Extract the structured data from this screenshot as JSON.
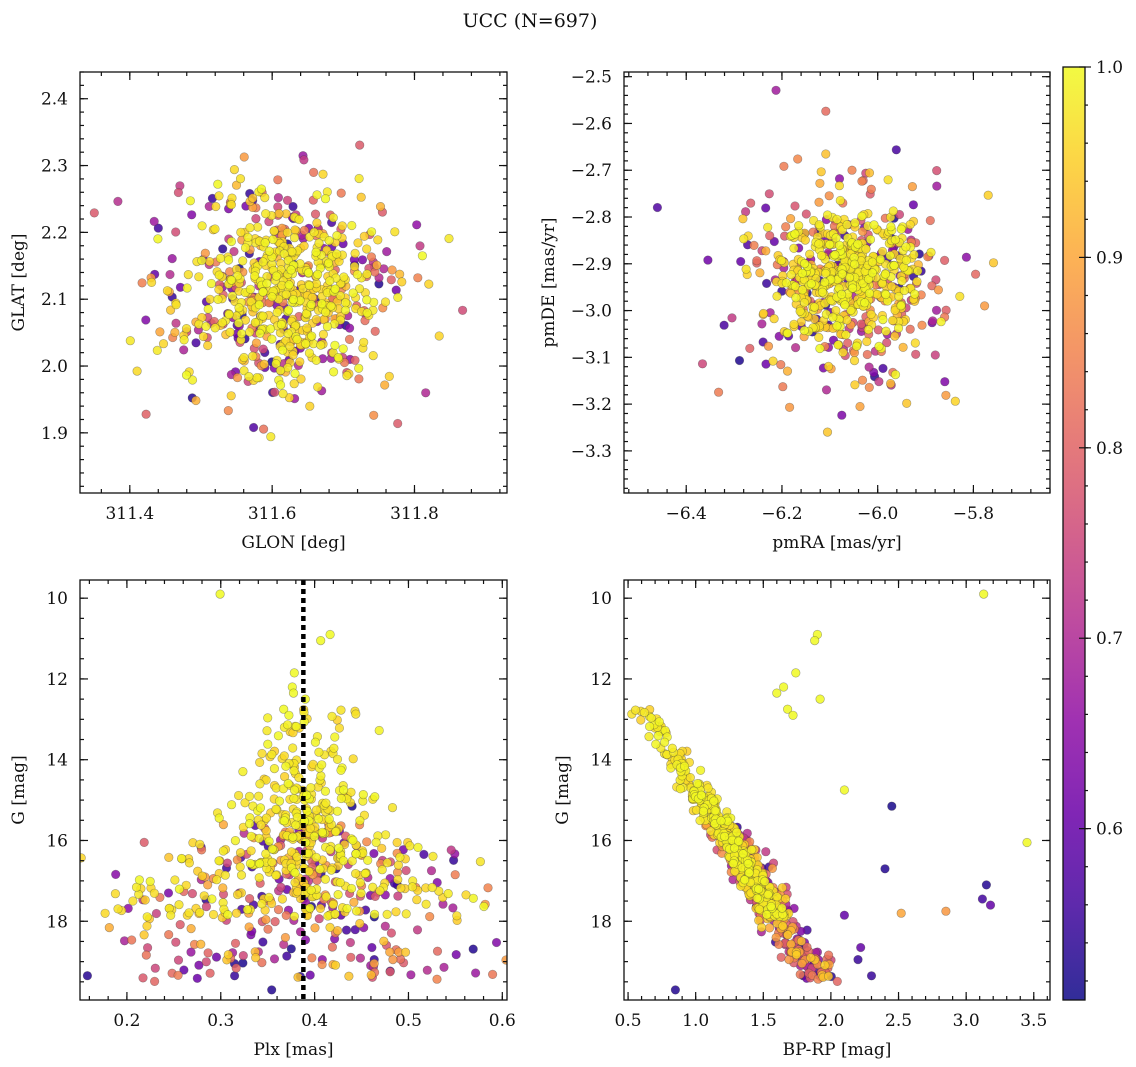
{
  "title": "UCC (N=697)",
  "panels": [
    {
      "id": "lonlat",
      "xlabel": "GLON [deg]",
      "ylabel": "GLAT [deg]",
      "xlim": [
        311.33,
        311.93
      ],
      "ylim": [
        1.81,
        2.44
      ],
      "xticks": [
        311.4,
        311.6,
        311.8
      ],
      "yticks": [
        1.9,
        2.0,
        2.1,
        2.2,
        2.3,
        2.4
      ],
      "xtick_labels": [
        "311.4",
        "311.6",
        "311.8"
      ],
      "ytick_labels": [
        "1.9",
        "2.0",
        "2.1",
        "2.2",
        "2.3",
        "2.4"
      ]
    },
    {
      "id": "pm",
      "xlabel": "pmRA [mas/yr]",
      "ylabel": "pmDE [mas/yr]",
      "xlim": [
        -6.53,
        -5.64
      ],
      "ylim": [
        -3.39,
        -2.49
      ],
      "xticks": [
        -6.4,
        -6.2,
        -6.0,
        -5.8
      ],
      "yticks": [
        -3.3,
        -3.2,
        -3.1,
        -3.0,
        -2.9,
        -2.8,
        -2.7,
        -2.6,
        -2.5
      ],
      "xtick_labels": [
        "−6.4",
        "−6.2",
        "−6.0",
        "−5.8"
      ],
      "ytick_labels": [
        "−3.3",
        "−3.2",
        "−3.1",
        "−3.0",
        "−2.9",
        "−2.8",
        "−2.7",
        "−2.6",
        "−2.5"
      ]
    },
    {
      "id": "plx",
      "xlabel": "Plx [mas]",
      "ylabel": "G [mag]",
      "xlim": [
        0.15,
        0.605
      ],
      "ylim": [
        19.95,
        9.55
      ],
      "xticks": [
        0.2,
        0.3,
        0.4,
        0.5,
        0.6
      ],
      "yticks": [
        10,
        12,
        14,
        16,
        18
      ],
      "xtick_labels": [
        "0.2",
        "0.3",
        "0.4",
        "0.5",
        "0.6"
      ],
      "ytick_labels": [
        "10",
        "12",
        "14",
        "16",
        "18"
      ],
      "vline_x": 0.388
    },
    {
      "id": "cmd",
      "xlabel": "BP-RP [mag]",
      "ylabel": "G [mag]",
      "xlim": [
        0.47,
        3.62
      ],
      "ylim": [
        19.95,
        9.55
      ],
      "xticks": [
        0.5,
        1.0,
        1.5,
        2.0,
        2.5,
        3.0,
        3.5
      ],
      "yticks": [
        10,
        12,
        14,
        16,
        18
      ],
      "xtick_labels": [
        "0.5",
        "1.0",
        "1.5",
        "2.0",
        "2.5",
        "3.0",
        "3.5"
      ],
      "ytick_labels": [
        "10",
        "12",
        "14",
        "16",
        "18"
      ]
    }
  ],
  "colorbar": {
    "vmin": 0.51,
    "vmax": 1.0,
    "colormap": "plasma",
    "ticks": [
      0.6,
      0.7,
      0.8,
      0.9,
      1.0
    ],
    "tick_labels": [
      "0.6",
      "0.7",
      "0.8",
      "0.9",
      "1.0"
    ]
  },
  "chart_data": [
    {
      "type": "scatter",
      "panel": "lonlat",
      "xlabel": "GLON [deg]",
      "ylabel": "GLAT [deg]",
      "xlim": [
        311.33,
        311.93
      ],
      "ylim": [
        1.81,
        2.44
      ],
      "points_note_count": 697,
      "center": [
        311.62,
        2.11
      ],
      "spread": [
        0.08,
        0.08
      ]
    },
    {
      "type": "scatter",
      "panel": "pm",
      "xlabel": "pmRA [mas/yr]",
      "ylabel": "pmDE [mas/yr]",
      "xlim": [
        -6.53,
        -5.64
      ],
      "ylim": [
        -3.39,
        -2.49
      ],
      "center": [
        -6.06,
        -2.93
      ],
      "spread": [
        0.09,
        0.1
      ]
    },
    {
      "type": "scatter",
      "panel": "plx",
      "xlabel": "Plx [mas]",
      "ylabel": "G [mag]",
      "xlim": [
        0.15,
        0.605
      ],
      "ylim": [
        19.95,
        9.55
      ],
      "vline": 0.388
    },
    {
      "type": "scatter",
      "panel": "cmd",
      "xlabel": "BP-RP [mag]",
      "ylabel": "G [mag]",
      "xlim": [
        0.47,
        3.62
      ],
      "ylim": [
        19.95,
        9.55
      ]
    }
  ]
}
